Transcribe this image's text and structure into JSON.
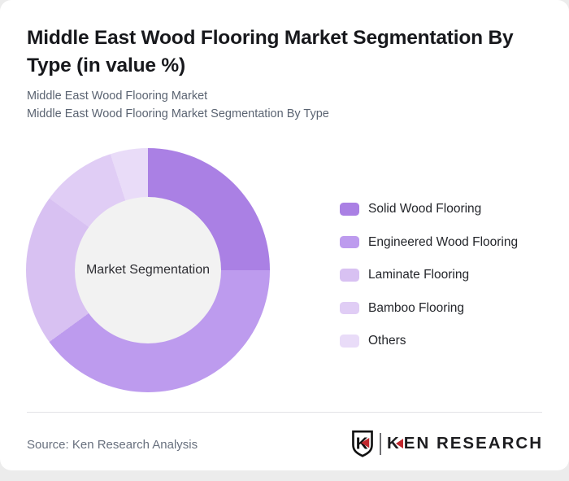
{
  "page": {
    "title": "Middle East Wood Flooring Market Segmentation By Type (in value %)",
    "subtitle_line1": "Middle East Wood Flooring Market",
    "subtitle_line2": "Middle East Wood Flooring Market Segmentation By Type"
  },
  "chart_data": {
    "type": "pie",
    "variant": "donut",
    "title": "Middle East Wood Flooring Market Segmentation By Type (in value %)",
    "center_label": "Market Segmentation",
    "unit": "percent",
    "categories": [
      "Solid Wood Flooring",
      "Engineered Wood Flooring",
      "Laminate Flooring",
      "Bamboo Flooring",
      "Others"
    ],
    "values": [
      25,
      40,
      20,
      10,
      5
    ],
    "colors": [
      "#aa80e4",
      "#bd9bee",
      "#d8c1f2",
      "#e0cdf5",
      "#e9dcf8"
    ],
    "start_angle_deg": 0,
    "direction": "clockwise",
    "legend_position": "right",
    "hole_color": "#f2f2f2"
  },
  "footer": {
    "source": "Source: Ken Research Analysis",
    "logo": {
      "brand_k": "K",
      "brand_rest": "EN RESEARCH",
      "accent_color": "#c1272d"
    }
  }
}
